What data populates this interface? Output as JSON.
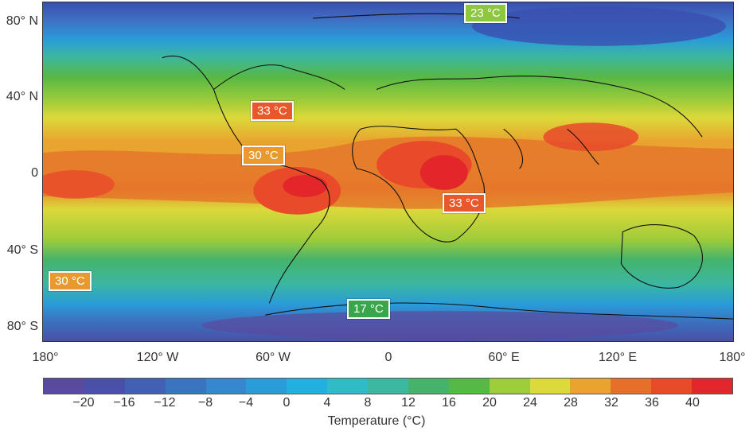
{
  "map": {
    "y_axis_labels": [
      "80° N",
      "40° N",
      "0",
      "40° S",
      "80° S"
    ],
    "x_axis_labels": [
      "180°",
      "120° W",
      "60° W",
      "0",
      "60° E",
      "120° E",
      "180°"
    ],
    "callouts": [
      {
        "text": "23 °C",
        "color": "#8dc63f"
      },
      {
        "text": "33 °C",
        "color": "#e8582a"
      },
      {
        "text": "30 °C",
        "color": "#e89a2e"
      },
      {
        "text": "33 °C",
        "color": "#e8582a"
      },
      {
        "text": "30 °C",
        "color": "#e89a2e"
      },
      {
        "text": "17 °C",
        "color": "#3aa64a"
      }
    ]
  },
  "colorbar": {
    "title": "Temperature (°C)",
    "tick_labels": [
      "−20",
      "−16",
      "−12",
      "−8",
      "−4",
      "0",
      "4",
      "8",
      "12",
      "16",
      "20",
      "24",
      "28",
      "32",
      "36",
      "40"
    ],
    "colors": [
      "#5a4a9e",
      "#4a4fa8",
      "#4361b4",
      "#3a73c0",
      "#3787cf",
      "#2a9cd8",
      "#22b0e0",
      "#2fbcc8",
      "#3cb7a0",
      "#45b36c",
      "#56b845",
      "#9fcc3a",
      "#dcd93a",
      "#e8a42e",
      "#e6702a",
      "#e84a2a",
      "#e3262a"
    ]
  }
}
